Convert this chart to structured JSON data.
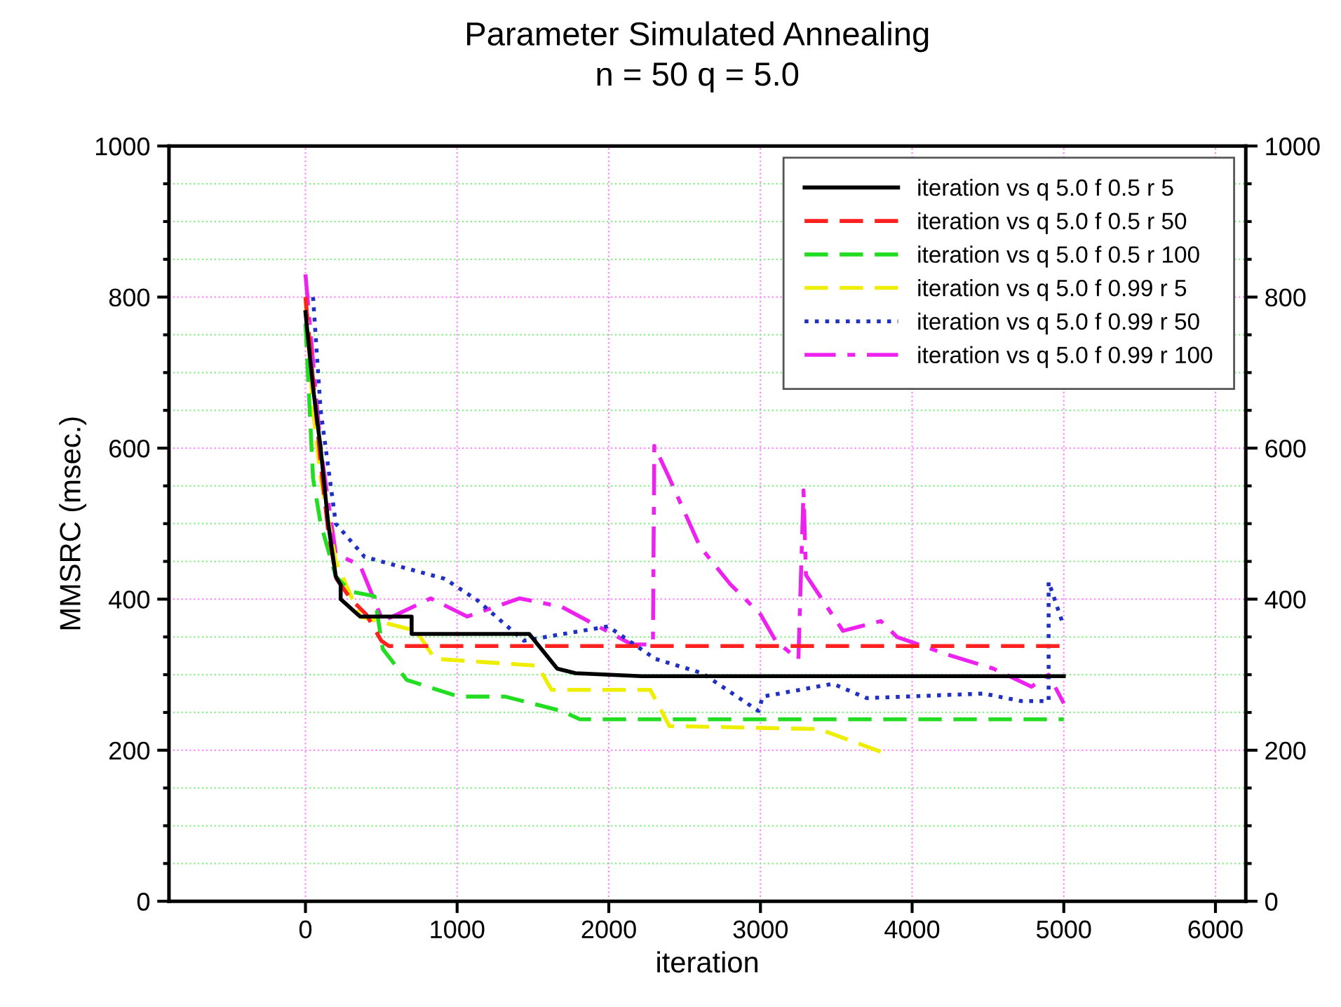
{
  "chart_data": {
    "type": "line",
    "title": "Parameter Simulated Annealing",
    "subtitle": "n = 50 q = 5.0",
    "xlabel": "iteration",
    "ylabel": "MMSRC (msec.)",
    "xlim": [
      -900,
      6200
    ],
    "xticks": [
      0,
      1000,
      2000,
      3000,
      4000,
      5000,
      6000
    ],
    "ylim": [
      0,
      1000
    ],
    "yticks": [
      0,
      {
        "value": 50,
        "label": null
      },
      {
        "value": 100,
        "label": null
      },
      {
        "value": 150,
        "label": null
      },
      200,
      {
        "value": 250,
        "label": null
      },
      {
        "value": 300,
        "label": null
      },
      {
        "value": 350,
        "label": null
      },
      400,
      {
        "value": 450,
        "label": null
      },
      {
        "value": 500,
        "label": null
      },
      {
        "value": 550,
        "label": null
      },
      600,
      {
        "value": 650,
        "label": null
      },
      {
        "value": 700,
        "label": null
      },
      {
        "value": 750,
        "label": null
      },
      800,
      {
        "value": 850,
        "label": null
      },
      {
        "value": 900,
        "label": null
      },
      {
        "value": 950,
        "label": null
      },
      1000
    ],
    "y2lim": [
      0,
      1000
    ],
    "y2ticks": [
      0,
      {
        "value": 50,
        "label": null
      },
      {
        "value": 100,
        "label": null
      },
      {
        "value": 150,
        "label": null
      },
      200,
      {
        "value": 250,
        "label": null
      },
      {
        "value": 300,
        "label": null
      },
      {
        "value": 350,
        "label": null
      },
      400,
      {
        "value": 450,
        "label": null
      },
      {
        "value": 500,
        "label": null
      },
      {
        "value": 550,
        "label": null
      },
      600,
      {
        "value": 650,
        "label": null
      },
      {
        "value": 700,
        "label": null
      },
      {
        "value": 750,
        "label": null
      },
      800,
      {
        "value": 850,
        "label": null
      },
      {
        "value": 900,
        "label": null
      },
      {
        "value": 950,
        "label": null
      },
      1000
    ],
    "grid": true,
    "legend": "top right",
    "marker": "none",
    "series": [
      {
        "name": "iteration vs q 5.0 f 0.5 r 5",
        "color": "#000000",
        "line_style": "solid",
        "x": [
          0,
          50,
          100,
          150,
          200,
          232,
          232,
          360,
          510,
          700,
          700,
          1475,
          1660,
          1780,
          2215,
          5000
        ],
        "values": [
          780,
          680,
          600,
          500,
          430,
          419,
          400,
          377,
          377,
          377,
          354,
          354,
          308,
          302,
          298,
          298
        ]
      },
      {
        "name": "iteration vs q 5.0 f 0.5 r 50",
        "color": "#ff2020",
        "line_style": "dashed",
        "x": [
          0,
          50,
          100,
          150,
          204,
          300,
          400,
          500,
          550,
          5000
        ],
        "values": [
          800,
          690,
          580,
          490,
          427,
          400,
          380,
          345,
          338,
          338
        ]
      },
      {
        "name": "iteration vs q 5.0 f 0.5 r 100",
        "color": "#22dd22",
        "line_style": "dashed",
        "x": [
          0,
          50,
          100,
          200,
          300,
          455,
          510,
          668,
          1011,
          1317,
          1688,
          1810,
          5000
        ],
        "values": [
          765,
          560,
          500,
          430,
          410,
          404,
          334,
          293,
          271,
          271,
          252,
          241,
          241
        ]
      },
      {
        "name": "iteration vs q 5.0 f 0.99 r 5",
        "color": "#eeee00",
        "line_style": "dashed",
        "x": [
          0,
          50,
          100,
          200,
          360,
          730,
          853,
          1530,
          1623,
          2273,
          2400,
          3386,
          3794
        ],
        "values": [
          795,
          650,
          560,
          450,
          377,
          358,
          321,
          312,
          280,
          280,
          232,
          228,
          198
        ]
      },
      {
        "name": "iteration vs q 5.0 f 0.99 r 50",
        "color": "#2030c0",
        "line_style": "dotted",
        "x": [
          50,
          100,
          200,
          390,
          918,
          1130,
          1440,
          1995,
          2306,
          2616,
          2987,
          3015,
          3478,
          3700,
          4470,
          4720,
          4900,
          4900,
          5000
        ],
        "values": [
          800,
          650,
          500,
          456,
          427,
          399,
          345,
          364,
          321,
          302,
          252,
          271,
          288,
          269,
          275,
          265,
          265,
          423,
          364
        ]
      },
      {
        "name": "iteration vs q 5.0 f 0.99 r 100",
        "color": "#ee22ee",
        "line_style": "dashdot",
        "x": [
          0,
          100,
          200,
          360,
          510,
          826,
          1067,
          1410,
          1688,
          2152,
          2291,
          2300,
          2400,
          2600,
          2800,
          3000,
          3100,
          3250,
          3284,
          3300,
          3544,
          3794,
          3900,
          4258,
          4536,
          4787,
          4900,
          5000
        ],
        "values": [
          830,
          600,
          460,
          445,
          371,
          401,
          377,
          401,
          390,
          340,
          340,
          603,
          560,
          470,
          420,
          380,
          345,
          320,
          544,
          432,
          358,
          371,
          350,
          325,
          308,
          284,
          300,
          262
        ]
      }
    ]
  }
}
